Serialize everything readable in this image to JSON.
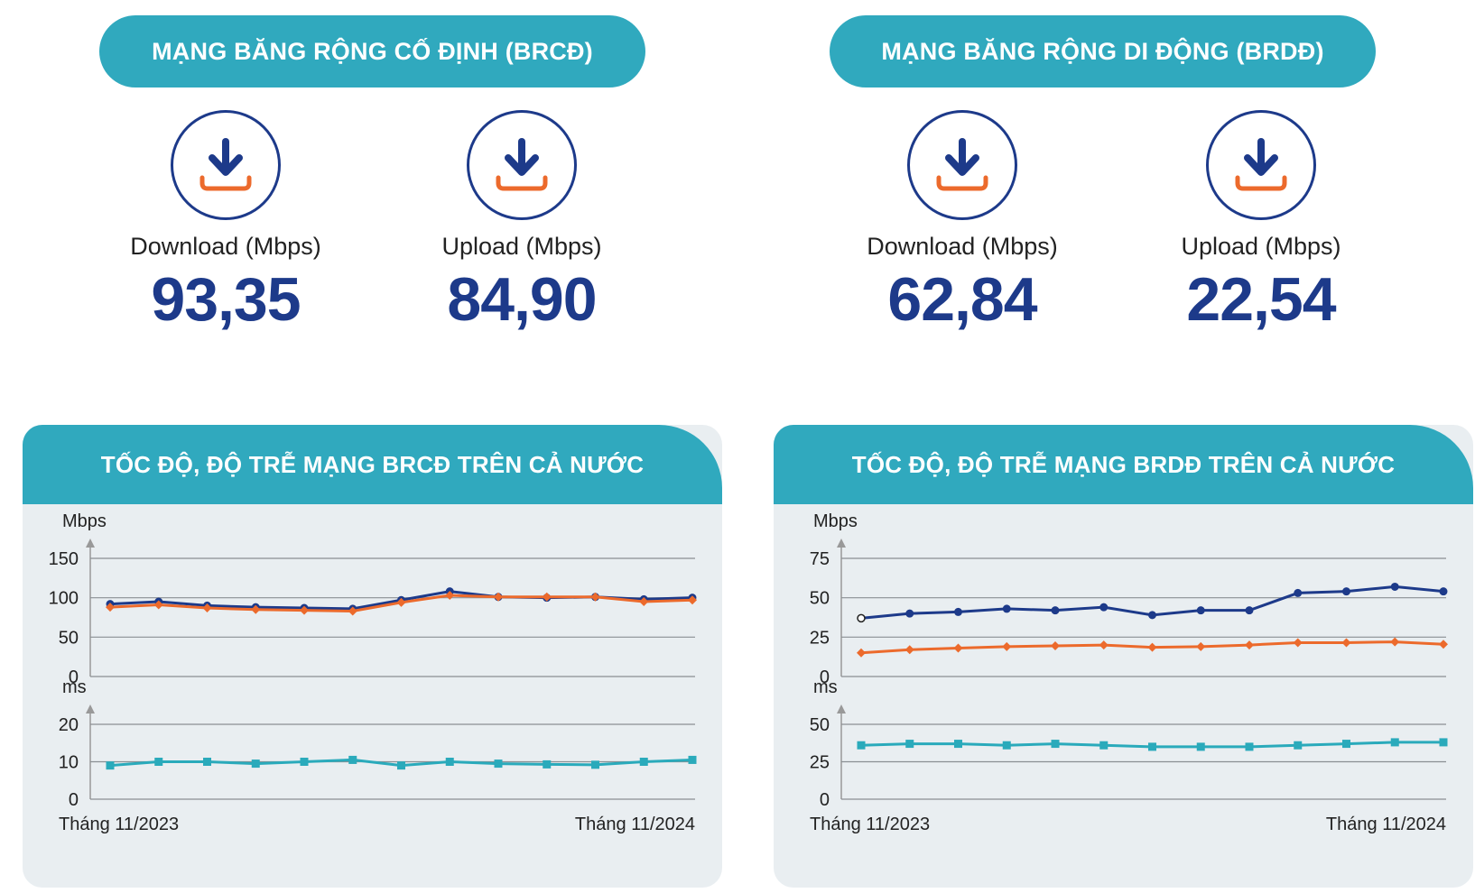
{
  "colors": {
    "accent": "#30a9be",
    "navy": "#1d3a8a",
    "orange": "#ec6a2c",
    "teal": "#2aaabb",
    "panel_bg": "#e9eef1"
  },
  "fixed": {
    "title": "MẠNG BĂNG RỘNG CỐ ĐỊNH (BRCĐ)",
    "download": {
      "icon": "download-icon",
      "label": "Download (Mbps)",
      "value": "93,35"
    },
    "upload": {
      "icon": "download-icon",
      "label": "Upload (Mbps)",
      "value": "84,90"
    }
  },
  "mobile": {
    "title": "MẠNG BĂNG RỘNG DI ĐỘNG (BRDĐ)",
    "download": {
      "icon": "download-icon",
      "label": "Download (Mbps)",
      "value": "62,84"
    },
    "upload": {
      "icon": "download-icon",
      "label": "Upload (Mbps)",
      "value": "22,54"
    }
  },
  "chart_data": [
    {
      "type": "line",
      "title": "TỐC ĐỘ, ĐỘ TRỄ MẠNG BRCĐ TRÊN CẢ NƯỚC",
      "x_start_label": "Tháng 11/2023",
      "x_end_label": "Tháng 11/2024",
      "grid": true,
      "speed": {
        "unit": "Mbps",
        "ylim": [
          0,
          150
        ],
        "ticks": [
          0,
          50,
          100,
          150
        ],
        "series": [
          {
            "color": "#1d3a8a",
            "marker": "circle",
            "values": [
              92,
              95,
              90,
              88,
              87,
              86,
              97,
              108,
              101,
              100,
              101,
              98,
              100
            ]
          },
          {
            "color": "#ec6a2c",
            "marker": "diamond",
            "values": [
              88,
              91,
              87,
              85,
              84,
              83,
              94,
              103,
              101,
              101,
              101,
              95,
              97
            ]
          }
        ]
      },
      "latency": {
        "unit": "ms",
        "ylim": [
          0,
          20
        ],
        "ticks": [
          0,
          10,
          20
        ],
        "series": [
          {
            "color": "#2aaabb",
            "marker": "square",
            "values": [
              9,
              10,
              10,
              9.5,
              10,
              10.5,
              9,
              10,
              9.5,
              9.3,
              9.2,
              10,
              10.5
            ]
          }
        ]
      }
    },
    {
      "type": "line",
      "title": "TỐC ĐỘ, ĐỘ TRỄ MẠNG BRDĐ TRÊN CẢ NƯỚC",
      "x_start_label": "Tháng 11/2023",
      "x_end_label": "Tháng 11/2024",
      "grid": true,
      "speed": {
        "unit": "Mbps",
        "ylim": [
          0,
          75
        ],
        "ticks": [
          0,
          25,
          50,
          75
        ],
        "series": [
          {
            "color": "#1d3a8a",
            "marker": "circle",
            "values": [
              37,
              40,
              41,
              43,
              42,
              44,
              39,
              42,
              42,
              53,
              54,
              57,
              54
            ]
          },
          {
            "color": "#ec6a2c",
            "marker": "diamond",
            "values": [
              15,
              17,
              18,
              19,
              19.5,
              20,
              18.5,
              19,
              20,
              21.5,
              21.5,
              22,
              20.5
            ]
          }
        ]
      },
      "latency": {
        "unit": "ms",
        "ylim": [
          0,
          50
        ],
        "ticks": [
          0,
          25,
          50
        ],
        "series": [
          {
            "color": "#2aaabb",
            "marker": "square",
            "values": [
              36,
              37,
              37,
              36,
              37,
              36,
              35,
              35,
              35,
              36,
              37,
              38,
              38
            ]
          }
        ]
      }
    }
  ]
}
